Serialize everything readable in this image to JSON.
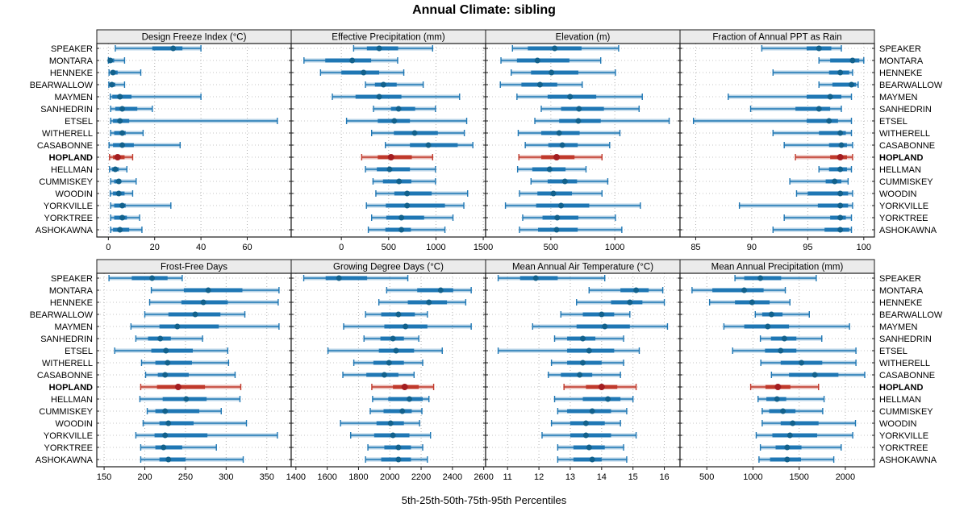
{
  "title": "Annual Climate: sibling",
  "caption": "5th-25th-50th-75th-95th Percentiles",
  "colors": {
    "blue": "#1f77b4",
    "blue_dot": "#12618c",
    "blue_band": "rgba(31,119,180,0.32)",
    "red": "#c0392b",
    "red_dot": "#a31d20",
    "red_band": "rgba(192,57,43,0.35)",
    "header_bg": "#ebebeb",
    "panel_border": "#1a1a1a",
    "grid": "#aaaaaa",
    "text": "#000000"
  },
  "chart_data": {
    "type": "dotplot-trellis",
    "layout": {
      "rows": 2,
      "cols": 4
    },
    "percentiles": [
      5,
      25,
      50,
      75,
      95
    ],
    "highlight_station": "HOPLAND",
    "stations": [
      "SPEAKER",
      "MONTARA",
      "HENNEKE",
      "BEARWALLOW",
      "MAYMEN",
      "SANHEDRIN",
      "ETSEL",
      "WITHERELL",
      "CASABONNE",
      "HOPLAND",
      "HELLMAN",
      "CUMMISKEY",
      "WOODIN",
      "YORKVILLE",
      "YORKTREE",
      "ASHOKAWNA"
    ],
    "panels": [
      {
        "title": "Design Freeze Index (°C)",
        "xlim": [
          -5,
          79
        ],
        "ticks": [
          0,
          20,
          40,
          60
        ],
        "data": [
          [
            3,
            19,
            28,
            32,
            40
          ],
          [
            0,
            0.3,
            0.8,
            2.5,
            7
          ],
          [
            0.3,
            1,
            2,
            4,
            14
          ],
          [
            0.2,
            0.8,
            1.5,
            3,
            7
          ],
          [
            0.8,
            1.7,
            5,
            10,
            40
          ],
          [
            1,
            3,
            6,
            12.5,
            19
          ],
          [
            1,
            2,
            5,
            9,
            73
          ],
          [
            1,
            2.5,
            6,
            7.5,
            15
          ],
          [
            0.3,
            2,
            6,
            11,
            31
          ],
          [
            0.5,
            2,
            4,
            7,
            10.5
          ],
          [
            0.5,
            1.5,
            3,
            4.5,
            8
          ],
          [
            1,
            2.5,
            4.5,
            5.5,
            12
          ],
          [
            0.8,
            2,
            4.5,
            7,
            10.5
          ],
          [
            1,
            2.5,
            6,
            7.5,
            27
          ],
          [
            1,
            2.5,
            6,
            8,
            13.5
          ],
          [
            1,
            2,
            5,
            9,
            14.5
          ]
        ]
      },
      {
        "title": "Effective Precipitation (mm)",
        "xlim": [
          -530,
          1525
        ],
        "ticks": [
          0,
          500,
          1000,
          1500
        ],
        "data": [
          [
            130,
            270,
            400,
            600,
            965
          ],
          [
            -395,
            -170,
            115,
            315,
            595
          ],
          [
            -220,
            0,
            235,
            400,
            660
          ],
          [
            255,
            355,
            445,
            585,
            865
          ],
          [
            -95,
            150,
            400,
            635,
            1250
          ],
          [
            340,
            525,
            605,
            780,
            995
          ],
          [
            55,
            385,
            560,
            725,
            1325
          ],
          [
            320,
            555,
            775,
            1020,
            1300
          ],
          [
            465,
            725,
            920,
            1230,
            1390
          ],
          [
            215,
            385,
            525,
            745,
            965
          ],
          [
            255,
            375,
            510,
            725,
            995
          ],
          [
            335,
            440,
            610,
            740,
            995
          ],
          [
            365,
            560,
            695,
            955,
            1335
          ],
          [
            265,
            470,
            695,
            1095,
            1295
          ],
          [
            320,
            475,
            635,
            875,
            1180
          ],
          [
            285,
            465,
            635,
            735,
            1095
          ]
        ]
      },
      {
        "title": "Elevation (m)",
        "xlim": [
          -10,
          1510
        ],
        "ticks": [
          500,
          1000
        ],
        "data": [
          [
            200,
            320,
            530,
            740,
            1030
          ],
          [
            110,
            235,
            395,
            645,
            890
          ],
          [
            190,
            345,
            505,
            715,
            1005
          ],
          [
            105,
            270,
            415,
            550,
            745
          ],
          [
            235,
            475,
            650,
            855,
            1215
          ],
          [
            425,
            580,
            720,
            915,
            1190
          ],
          [
            375,
            565,
            715,
            890,
            1425
          ],
          [
            245,
            425,
            565,
            725,
            1040
          ],
          [
            300,
            480,
            590,
            710,
            960
          ],
          [
            250,
            425,
            545,
            685,
            900
          ],
          [
            240,
            355,
            490,
            615,
            775
          ],
          [
            345,
            475,
            610,
            705,
            945
          ],
          [
            255,
            395,
            520,
            665,
            900
          ],
          [
            145,
            385,
            580,
            800,
            1200
          ],
          [
            280,
            435,
            550,
            715,
            1005
          ],
          [
            255,
            400,
            545,
            710,
            1055
          ]
        ]
      },
      {
        "title": "Fraction of Annual PPT as Rain",
        "xlim": [
          83.6,
          100.95
        ],
        "ticks": [
          85,
          90,
          95,
          100
        ],
        "data": [
          [
            90.9,
            94.9,
            96.0,
            97.1,
            98.0
          ],
          [
            96.0,
            97.0,
            99.0,
            99.6,
            100.0
          ],
          [
            91.9,
            96.9,
            97.9,
            98.7,
            99.0
          ],
          [
            96.0,
            97.2,
            98.9,
            99.3,
            99.5
          ],
          [
            87.9,
            94.9,
            97.0,
            98.0,
            98.9
          ],
          [
            89.9,
            93.9,
            96.0,
            97.0,
            98.0
          ],
          [
            84.8,
            94.9,
            96.9,
            97.7,
            98.9
          ],
          [
            91.9,
            96.0,
            97.9,
            98.4,
            98.9
          ],
          [
            92.9,
            96.9,
            98.0,
            98.5,
            99.0
          ],
          [
            93.9,
            97.0,
            97.9,
            98.5,
            99.0
          ],
          [
            96.0,
            96.9,
            97.9,
            98.5,
            98.9
          ],
          [
            93.4,
            96.6,
            97.4,
            98.0,
            98.6
          ],
          [
            94.0,
            95.0,
            97.9,
            98.6,
            99.0
          ],
          [
            88.9,
            95.9,
            97.9,
            98.6,
            99.0
          ],
          [
            92.9,
            97.0,
            97.9,
            98.4,
            98.9
          ],
          [
            91.9,
            96.5,
            97.9,
            98.7,
            98.9
          ]
        ]
      },
      {
        "title": "Frost-Free Days",
        "xlim": [
          141,
          380
        ],
        "ticks": [
          150,
          200,
          250,
          300,
          350
        ],
        "data": [
          [
            156,
            184,
            209,
            228,
            246
          ],
          [
            208,
            248,
            278,
            320,
            365
          ],
          [
            206,
            245,
            272,
            302,
            364
          ],
          [
            200,
            229,
            262,
            293,
            323
          ],
          [
            183,
            218,
            240,
            291,
            365
          ],
          [
            189,
            204,
            219,
            232,
            271
          ],
          [
            163,
            208,
            226,
            259,
            302
          ],
          [
            196,
            213,
            228,
            258,
            303
          ],
          [
            201,
            216,
            225,
            254,
            311
          ],
          [
            195,
            215,
            241,
            274,
            318
          ],
          [
            194,
            222,
            251,
            276,
            317
          ],
          [
            203,
            213,
            225,
            267,
            294
          ],
          [
            198,
            218,
            229,
            260,
            325
          ],
          [
            189,
            212,
            225,
            277,
            363
          ],
          [
            195,
            213,
            223,
            246,
            288
          ],
          [
            195,
            218,
            229,
            250,
            321
          ]
        ]
      },
      {
        "title": "Growing Degree Days (°C)",
        "xlim": [
          1370,
          2612
        ],
        "ticks": [
          1400,
          1600,
          1800,
          2000,
          2200,
          2400,
          2600
        ],
        "data": [
          [
            1450,
            1590,
            1675,
            1855,
            2115
          ],
          [
            1980,
            2175,
            2325,
            2405,
            2520
          ],
          [
            1930,
            2115,
            2250,
            2365,
            2485
          ],
          [
            1845,
            1945,
            2055,
            2160,
            2240
          ],
          [
            1705,
            1965,
            2100,
            2240,
            2520
          ],
          [
            1835,
            1940,
            2020,
            2090,
            2185
          ],
          [
            1605,
            1930,
            2040,
            2155,
            2335
          ],
          [
            1770,
            1895,
            1995,
            2090,
            2210
          ],
          [
            1700,
            1850,
            1965,
            2055,
            2155
          ],
          [
            1885,
            2020,
            2095,
            2185,
            2280
          ],
          [
            1890,
            1990,
            2125,
            2210,
            2250
          ],
          [
            1875,
            1960,
            2080,
            2140,
            2205
          ],
          [
            1685,
            1915,
            2005,
            2090,
            2190
          ],
          [
            1750,
            1900,
            2020,
            2125,
            2260
          ],
          [
            1860,
            1965,
            2055,
            2135,
            2210
          ],
          [
            1845,
            1945,
            2055,
            2135,
            2240
          ]
        ]
      },
      {
        "title": "Mean Annual Air Temperature (°C)",
        "xlim": [
          10.3,
          16.5
        ],
        "ticks": [
          11,
          12,
          13,
          14,
          15,
          16
        ],
        "data": [
          [
            10.7,
            11.4,
            11.9,
            12.6,
            14.1
          ],
          [
            13.6,
            14.6,
            15.1,
            15.5,
            15.95
          ],
          [
            13.2,
            14.3,
            14.9,
            15.3,
            16.0
          ],
          [
            12.7,
            13.4,
            14.0,
            14.4,
            14.9
          ],
          [
            11.8,
            13.2,
            14.1,
            14.9,
            16.1
          ],
          [
            12.5,
            12.9,
            13.4,
            13.8,
            14.7
          ],
          [
            10.7,
            12.9,
            13.6,
            14.4,
            15.2
          ],
          [
            12.4,
            12.9,
            13.4,
            14.0,
            14.7
          ],
          [
            12.3,
            12.7,
            13.3,
            13.7,
            14.6
          ],
          [
            12.8,
            13.5,
            14.0,
            14.5,
            15.1
          ],
          [
            12.5,
            13.4,
            14.2,
            14.6,
            15.0
          ],
          [
            12.6,
            12.9,
            13.7,
            14.3,
            14.8
          ],
          [
            12.4,
            13.0,
            13.5,
            14.1,
            14.6
          ],
          [
            12.1,
            13.0,
            13.5,
            14.3,
            15.1
          ],
          [
            12.6,
            13.1,
            13.6,
            14.1,
            14.7
          ],
          [
            12.6,
            13.1,
            13.7,
            14.0,
            14.8
          ]
        ]
      },
      {
        "title": "Mean Annual Precipitation (mm)",
        "xlim": [
          210,
          2315
        ],
        "ticks": [
          500,
          1000,
          1500,
          2000
        ],
        "data": [
          [
            805,
            905,
            1080,
            1305,
            1685
          ],
          [
            340,
            560,
            905,
            1115,
            1350
          ],
          [
            530,
            805,
            990,
            1180,
            1400
          ],
          [
            1025,
            1100,
            1200,
            1320,
            1610
          ],
          [
            685,
            905,
            1160,
            1390,
            2045
          ],
          [
            1080,
            1195,
            1340,
            1470,
            1745
          ],
          [
            780,
            1130,
            1300,
            1470,
            2115
          ],
          [
            1085,
            1300,
            1525,
            1750,
            2115
          ],
          [
            1200,
            1390,
            1670,
            1925,
            2210
          ],
          [
            975,
            1135,
            1270,
            1405,
            1710
          ],
          [
            1055,
            1145,
            1260,
            1360,
            1770
          ],
          [
            1100,
            1175,
            1325,
            1460,
            1755
          ],
          [
            1100,
            1300,
            1430,
            1710,
            2110
          ],
          [
            1035,
            1210,
            1400,
            1695,
            2080
          ],
          [
            1080,
            1245,
            1370,
            1525,
            1955
          ],
          [
            1065,
            1185,
            1370,
            1520,
            1875
          ]
        ]
      }
    ]
  }
}
